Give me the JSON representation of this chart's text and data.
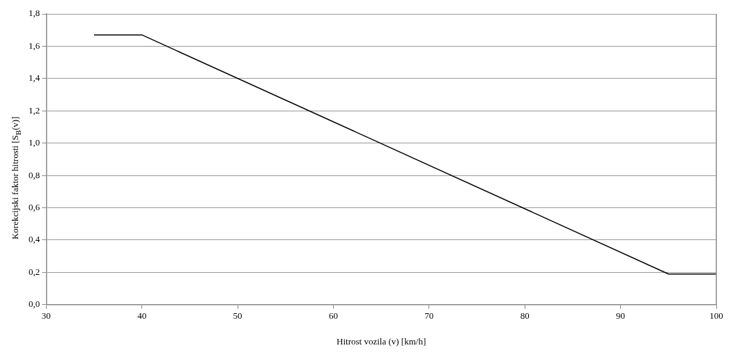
{
  "chart_data": {
    "type": "line",
    "xlabel": "Hitrost vozila (v) [km/h]",
    "ylabel": "Korekcijski faktor hitrosti  [S$_{B}$(v)]",
    "x": [
      35,
      40,
      95,
      100
    ],
    "series": [
      {
        "color": "#000000",
        "values": [
          1.67,
          1.67,
          0.19,
          0.19
        ]
      }
    ],
    "xlim": [
      30,
      100
    ],
    "xticks": [
      30,
      40,
      50,
      60,
      70,
      80,
      90,
      100
    ],
    "ylim": [
      0,
      1.8
    ],
    "yticks": [
      {
        "value": 0,
        "label": "0,0"
      },
      {
        "value": 0.2,
        "label": "0,2"
      },
      {
        "value": 0.4,
        "label": "0,4"
      },
      {
        "value": 0.6,
        "label": "0,6"
      },
      {
        "value": 0.8,
        "label": "0,8"
      },
      {
        "value": 1,
        "label": "1,0"
      },
      {
        "value": 1.2,
        "label": "1,2"
      },
      {
        "value": 1.4,
        "label": "1,4"
      },
      {
        "value": 1.6,
        "label": "1,6"
      },
      {
        "value": 1.8,
        "label": "1,8"
      }
    ],
    "grid": "y",
    "legend": false,
    "marker": "none",
    "line_style": "solid"
  }
}
